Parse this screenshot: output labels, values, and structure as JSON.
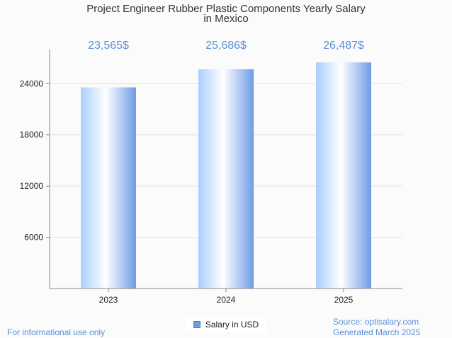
{
  "chart_data": {
    "type": "bar",
    "title_lines": [
      "Project Engineer Rubber Plastic Components Yearly Salary",
      "in Mexico"
    ],
    "categories": [
      "2023",
      "2024",
      "2025"
    ],
    "series": [
      {
        "name": "Salary in USD",
        "values": [
          23565,
          25686,
          26487
        ],
        "data_labels": [
          "23,565$",
          "25,686$",
          "26,487$"
        ]
      }
    ],
    "yticks": [
      6000,
      12000,
      18000,
      24000
    ],
    "ylim": [
      0,
      28000
    ],
    "grid": true,
    "legend_position": "bottom-center"
  },
  "footer": {
    "disclaimer": "For informational use only",
    "source": "Source: optisalary.com",
    "generated": "Generated March 2025"
  },
  "colors": {
    "data_label": "#5b8fd6",
    "bar_edge": "#6f9ce6",
    "bar_light": "#ffffff",
    "bar_tint": "#b8d8ff"
  }
}
